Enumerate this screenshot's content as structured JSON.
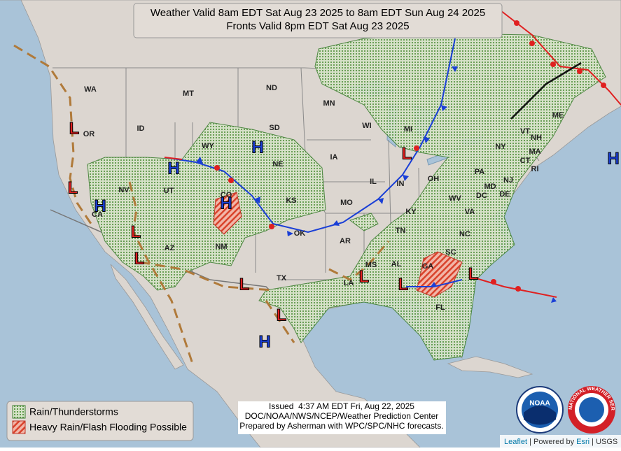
{
  "title": {
    "line1": "Weather Valid 8am EDT Sat Aug 23 2025 to 8am EDT Sun Aug 24 2025",
    "line2": "Fronts Valid 8pm EDT Sat Aug 23 2025"
  },
  "states": [
    "WA",
    "OR",
    "CA",
    "NV",
    "ID",
    "MT",
    "WY",
    "UT",
    "CO",
    "AZ",
    "NM",
    "ND",
    "SD",
    "NE",
    "KS",
    "OK",
    "TX",
    "MN",
    "IA",
    "MO",
    "AR",
    "LA",
    "WI",
    "IL",
    "MI",
    "IN",
    "OH",
    "KY",
    "TN",
    "MS",
    "AL",
    "GA",
    "FL",
    "SC",
    "NC",
    "VA",
    "WV",
    "PA",
    "NY",
    "VT",
    "NH",
    "ME",
    "MA",
    "CT",
    "RI",
    "NJ",
    "DE",
    "MD",
    "DC"
  ],
  "pressure_centers": [
    "H",
    "H",
    "H",
    "H",
    "H",
    "H",
    "L",
    "L",
    "L",
    "L",
    "L",
    "L",
    "L",
    "L",
    "L",
    "L"
  ],
  "legend": [
    "Rain/Thunderstorms",
    "Heavy Rain/Flash Flooding Possible"
  ],
  "issued": [
    "Issued  4:37 AM EDT Fri, Aug 22, 2025",
    "DOC/NOAA/NWS/NCEP/Weather Prediction Center",
    "Prepared by Asherman with WPC/SPC/NHC forecasts."
  ],
  "attribution": [
    "Leaflet",
    "|",
    "Powered by",
    "Esri",
    "|",
    "USGS"
  ],
  "logos": {
    "noaa": "NOAA",
    "nws": "NATIONAL WEATHER SERVICE"
  }
}
